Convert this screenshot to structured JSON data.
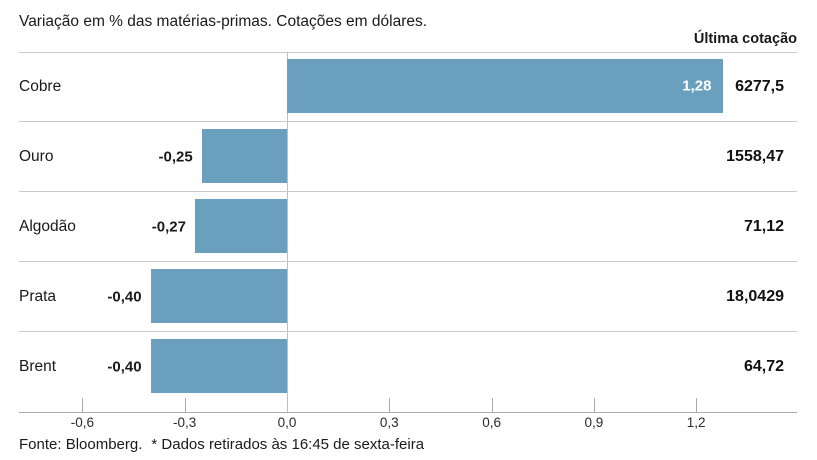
{
  "chart_data": {
    "type": "bar",
    "orientation": "horizontal",
    "title": "Variação em % das matérias-primas. Cotações em dólares.",
    "last_quotation_label": "Última cotação",
    "categories": [
      "Cobre",
      "Ouro",
      "Algodão",
      "Prata",
      "Brent"
    ],
    "values": [
      1.28,
      -0.25,
      -0.27,
      -0.4,
      -0.4
    ],
    "value_labels": [
      "1,28",
      "-0,25",
      "-0,27",
      "-0,40",
      "-0,40"
    ],
    "last_quotations": [
      "6277,5",
      "1558,47",
      "71,12",
      "18,0429",
      "64,72"
    ],
    "x_ticks": [
      -0.6,
      -0.3,
      0,
      0.3,
      0.6,
      0.9,
      1.2
    ],
    "x_tick_labels": [
      "-0,6",
      "-0,3",
      "0,0",
      "0,3",
      "0,6",
      "0,9",
      "1,2"
    ],
    "xlim": [
      -0.79,
      1.5
    ],
    "bar_color": "#6aa0bd",
    "grid": "zero baseline only",
    "legend": "none"
  },
  "footer": {
    "source": "Fonte: Bloomberg.",
    "note": "* Dados retirados às 16:45 de sexta-feira"
  }
}
